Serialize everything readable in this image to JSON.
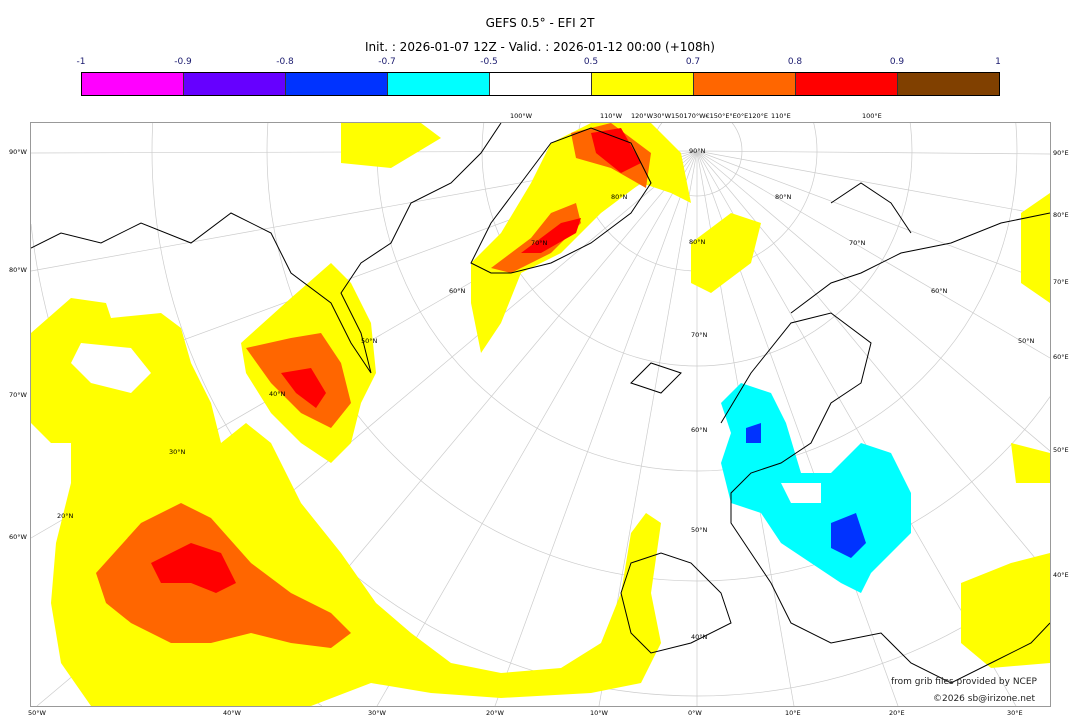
{
  "title": "GEFS 0.5° - EFI 2T",
  "subtitle": "Init. : 2026-01-07 12Z - Valid. : 2026-01-12 00:00 (+108h)",
  "colorbar": {
    "ticks": [
      "-1",
      "-0.9",
      "-0.8",
      "-0.7",
      "-0.5",
      "0.5",
      "0.7",
      "0.8",
      "0.9",
      "1"
    ],
    "colors": [
      "#ff00ff",
      "#6600ff",
      "#0033ff",
      "#00ffff",
      "#ffffff",
      "#ffff00",
      "#ff6600",
      "#ff0000",
      "#804000"
    ]
  },
  "map": {
    "left_labels": [
      "90°W",
      "80°W",
      "70°W",
      "60°W"
    ],
    "right_labels": [
      "90°E",
      "80°E",
      "70°E",
      "60°E",
      "50°E",
      "40°E"
    ],
    "bottom_labels": [
      "50°W",
      "40°W",
      "30°W",
      "20°W",
      "10°W",
      "0°W",
      "10°E",
      "20°E",
      "30°E"
    ],
    "top_labels": [
      "100°W",
      "110°W",
      "120°W30°W150170°W€150°E°E0°E120°E",
      "110°E",
      "100°E"
    ],
    "lat_labels": [
      "90°N",
      "80°N",
      "80°N",
      "80°N",
      "70°N",
      "70°N",
      "70°N",
      "60°N",
      "60°N",
      "60°N",
      "50°N",
      "50°N",
      "50°N",
      "40°N",
      "40°N",
      "30°N",
      "20°N"
    ]
  },
  "credits": {
    "line1": "from grib files provided by NCEP",
    "line2": "©2026 sb@irizone.net"
  }
}
